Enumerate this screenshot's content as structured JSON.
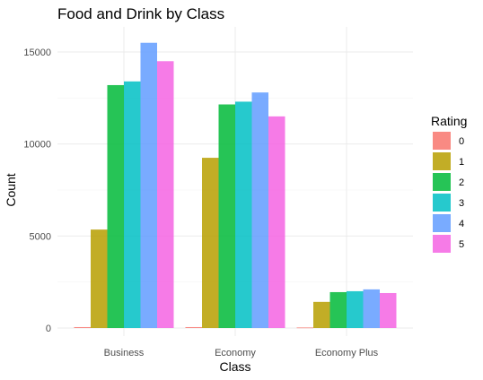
{
  "chart_data": {
    "type": "bar",
    "title": "Food and Drink by Class",
    "xlabel": "Class",
    "ylabel": "Count",
    "categories": [
      "Business",
      "Economy",
      "Economy Plus"
    ],
    "ylim": [
      0,
      16000
    ],
    "yticks": [
      0,
      5000,
      10000,
      15000
    ],
    "ytick_labels": [
      "0",
      "5000",
      "10000",
      "15000"
    ],
    "grid": true,
    "legend": {
      "title": "Rating",
      "position": "right"
    },
    "series": [
      {
        "name": "0",
        "color": "#F8766D",
        "values": [
          50,
          50,
          30
        ]
      },
      {
        "name": "1",
        "color": "#B79F00",
        "values": [
          5350,
          9250,
          1420
        ]
      },
      {
        "name": "2",
        "color": "#00BA38",
        "values": [
          13200,
          12150,
          1950
        ]
      },
      {
        "name": "3",
        "color": "#00BFC4",
        "values": [
          13400,
          12300,
          2000
        ]
      },
      {
        "name": "4",
        "color": "#619CFF",
        "values": [
          15500,
          12800,
          2100
        ]
      },
      {
        "name": "5",
        "color": "#F564E3",
        "values": [
          14500,
          11500,
          1900
        ]
      }
    ]
  }
}
